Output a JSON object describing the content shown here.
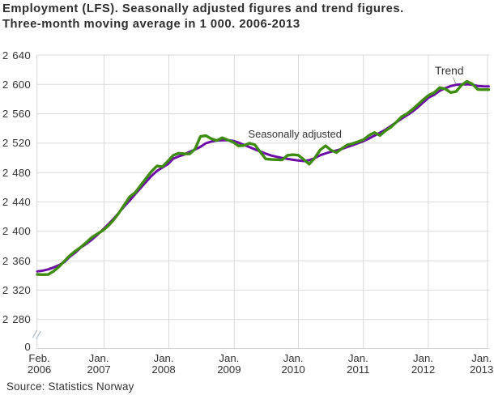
{
  "title": {
    "line1": "Employment (LFS). Seasonally adjusted figures and trend figures.",
    "line2": "Three-month moving average in 1 000. 2006-2013"
  },
  "source": "Source: Statistics Norway",
  "annotations": {
    "seasonally_adjusted": "Seasonally adjusted",
    "trend": "Trend"
  },
  "colors": {
    "seasonally_adjusted": "#3e8c0e",
    "trend": "#6d0da6",
    "gridline": "#d9d9d9",
    "axis_line": "#d3d5d7",
    "text": "#333333",
    "title_text": "#2e2e2e",
    "callout": "#999999"
  },
  "chart_data": {
    "type": "line",
    "title": "Employment (LFS). Seasonally adjusted figures and trend figures. Three-month moving average in 1 000. 2006-2013",
    "x_start": "Feb. 2006",
    "x_end": "Jan. 2013",
    "x_unit": "month",
    "ylabel": "",
    "y_unit": "1 000 persons",
    "ylim": [
      2280,
      2640
    ],
    "y_axis_break": true,
    "grid": true,
    "legend_position": "annotations-on-chart",
    "y_ticks": [
      {
        "label": "2 640",
        "v": 2640
      },
      {
        "label": "2 600",
        "v": 2600
      },
      {
        "label": "2 560",
        "v": 2560
      },
      {
        "label": "2 520",
        "v": 2520
      },
      {
        "label": "2 480",
        "v": 2480
      },
      {
        "label": "2 440",
        "v": 2440
      },
      {
        "label": "2 400",
        "v": 2400
      },
      {
        "label": "2 360",
        "v": 2360
      },
      {
        "label": "2 320",
        "v": 2320
      },
      {
        "label": "2 280",
        "v": 2280
      },
      {
        "label": "0",
        "v": 0
      }
    ],
    "x_ticks": [
      {
        "line1": "Feb.",
        "line2": "2006"
      },
      {
        "line1": "Jan.",
        "line2": "2007"
      },
      {
        "line1": "Jan.",
        "line2": "2008"
      },
      {
        "line1": "Jan.",
        "line2": "2009"
      },
      {
        "line1": "Jan.",
        "line2": "2010"
      },
      {
        "line1": "Jan.",
        "line2": "2011"
      },
      {
        "line1": "Jan.",
        "line2": "2012"
      },
      {
        "line1": "Jan.",
        "line2": "2013"
      }
    ],
    "series": [
      {
        "name": "Seasonally adjusted",
        "color_key": "seasonally_adjusted",
        "values": [
          2341.5,
          2341.0,
          2341.3,
          2345.7,
          2351.9,
          2359.5,
          2367.1,
          2373.1,
          2378.4,
          2384.8,
          2391.6,
          2396.4,
          2400.8,
          2407.2,
          2415.1,
          2425.0,
          2436.0,
          2447.1,
          2452.7,
          2462.4,
          2472.1,
          2481.6,
          2488.9,
          2488.0,
          2495.4,
          2503.5,
          2506.3,
          2505.6,
          2505.3,
          2512.0,
          2529.1,
          2530.2,
          2526.1,
          2523.6,
          2527.4,
          2524.5,
          2521.4,
          2516.4,
          2516.8,
          2520.0,
          2517.8,
          2508.0,
          2498.6,
          2497.8,
          2497.5,
          2497.2,
          2503.5,
          2504.3,
          2503.6,
          2497.7,
          2491.5,
          2499.8,
          2510.7,
          2516.5,
          2510.4,
          2507.2,
          2512.7,
          2517.7,
          2519.4,
          2522.1,
          2524.8,
          2530.7,
          2534.5,
          2530.5,
          2536.9,
          2541.8,
          2548.5,
          2556.0,
          2560.3,
          2566.2,
          2572.8,
          2579.5,
          2585.5,
          2589.0,
          2595.6,
          2593.9,
          2589.0,
          2590.3,
          2599.1,
          2604.2,
          2600.6,
          2593.1,
          2592.9,
          2593.0
        ]
      },
      {
        "name": "Trend",
        "color_key": "trend",
        "values": [
          2345.5,
          2346.5,
          2348.2,
          2350.8,
          2354.1,
          2358.2,
          2365.5,
          2371.1,
          2377.8,
          2382.9,
          2388.5,
          2394.9,
          2401.9,
          2409.2,
          2416.8,
          2425.3,
          2434.0,
          2442.1,
          2450.6,
          2459.0,
          2467.2,
          2475.6,
          2482.2,
          2486.8,
          2491.4,
          2498.9,
          2502.0,
          2504.6,
          2508.2,
          2511.3,
          2515.0,
          2519.9,
          2522.2,
          2523.6,
          2524.1,
          2524.0,
          2523.2,
          2520.8,
          2517.7,
          2514.7,
          2511.6,
          2508.6,
          2505.8,
          2503.2,
          2501.5,
          2499.9,
          2498.6,
          2497.4,
          2496.4,
          2495.6,
          2496.9,
          2499.6,
          2503.6,
          2506.1,
          2508.3,
          2510.1,
          2512.2,
          2514.8,
          2517.4,
          2520.0,
          2522.9,
          2526.4,
          2530.3,
          2534.2,
          2538.3,
          2543.4,
          2548.5,
          2553.4,
          2558.1,
          2563.2,
          2569.0,
          2575.9,
          2582.3,
          2586.0,
          2591.3,
          2594.9,
          2597.8,
          2599.4,
          2600.0,
          2600.2,
          2599.4,
          2597.9,
          2597.5,
          2597.4
        ]
      }
    ]
  }
}
